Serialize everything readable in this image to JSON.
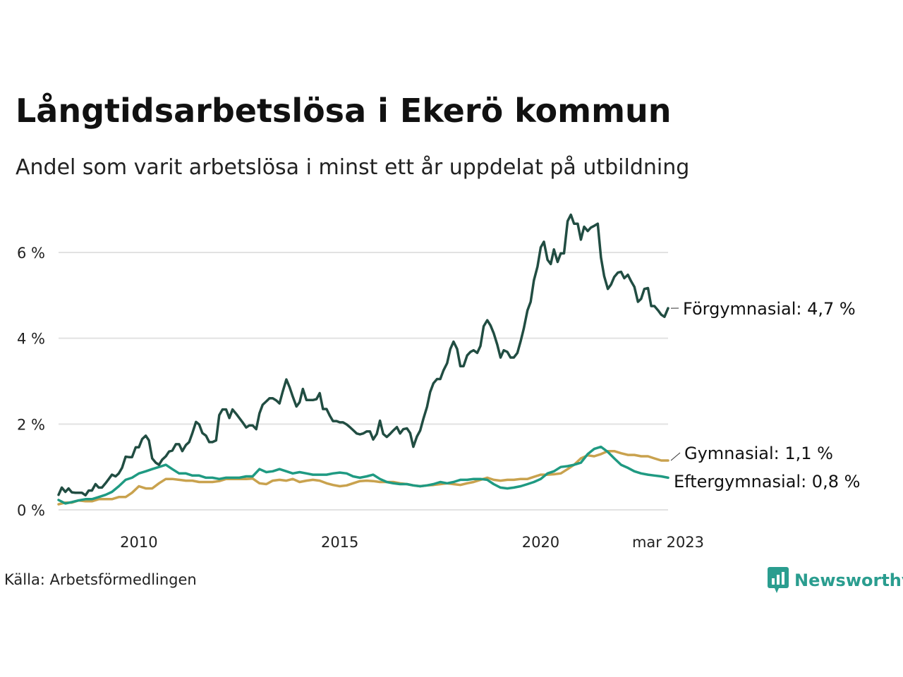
{
  "title": "Långtidsarbetslösa i Ekerö kommun",
  "subtitle": "Andel som varit arbetslösa i minst ett år uppdelat på utbildning",
  "source": "Källa: Arbetsförmedlingen",
  "brand": {
    "name": "Newsworthy",
    "color": "#2a9d8f"
  },
  "chart_data": {
    "type": "line",
    "title": "Långtidsarbetslösa i Ekerö kommun",
    "subtitle": "Andel som varit arbetslösa i minst ett år uppdelat på utbildning",
    "xlim": [
      2008.0,
      2023.17
    ],
    "ylim": [
      0,
      7
    ],
    "y_ticks": [
      {
        "value": 0,
        "label": "0 %"
      },
      {
        "value": 2,
        "label": "2 %"
      },
      {
        "value": 4,
        "label": "4 %"
      },
      {
        "value": 6,
        "label": "6 %"
      }
    ],
    "x_ticks": [
      {
        "value": 2010,
        "label": "2010"
      },
      {
        "value": 2015,
        "label": "2015"
      },
      {
        "value": 2020,
        "label": "2020"
      },
      {
        "value": 2023.17,
        "label": "mar 2023"
      }
    ],
    "grid": "horizontal",
    "series": [
      {
        "name": "Förgymnasial",
        "end_label": "Förgymnasial: 4,7 %",
        "color": "#214d42",
        "x": [
          2008.0,
          2008.08,
          2008.17,
          2008.25,
          2008.33,
          2008.42,
          2008.5,
          2008.58,
          2008.67,
          2008.75,
          2008.83,
          2008.92,
          2009.0,
          2009.08,
          2009.17,
          2009.25,
          2009.33,
          2009.42,
          2009.5,
          2009.58,
          2009.67,
          2009.75,
          2009.83,
          2009.92,
          2010.0,
          2010.08,
          2010.17,
          2010.25,
          2010.33,
          2010.42,
          2010.5,
          2010.58,
          2010.67,
          2010.75,
          2010.83,
          2010.92,
          2011.0,
          2011.08,
          2011.17,
          2011.25,
          2011.33,
          2011.42,
          2011.5,
          2011.58,
          2011.67,
          2011.75,
          2011.83,
          2011.92,
          2012.0,
          2012.08,
          2012.17,
          2012.25,
          2012.33,
          2012.42,
          2012.5,
          2012.58,
          2012.67,
          2012.75,
          2012.83,
          2012.92,
          2013.0,
          2013.08,
          2013.17,
          2013.25,
          2013.33,
          2013.42,
          2013.5,
          2013.58,
          2013.67,
          2013.75,
          2013.83,
          2013.92,
          2014.0,
          2014.08,
          2014.17,
          2014.25,
          2014.33,
          2014.42,
          2014.5,
          2014.58,
          2014.67,
          2014.75,
          2014.83,
          2014.92,
          2015.0,
          2015.08,
          2015.17,
          2015.25,
          2015.33,
          2015.42,
          2015.5,
          2015.58,
          2015.67,
          2015.75,
          2015.83,
          2015.92,
          2016.0,
          2016.08,
          2016.17,
          2016.25,
          2016.33,
          2016.42,
          2016.5,
          2016.58,
          2016.67,
          2016.75,
          2016.83,
          2016.92,
          2017.0,
          2017.08,
          2017.17,
          2017.25,
          2017.33,
          2017.42,
          2017.5,
          2017.58,
          2017.67,
          2017.75,
          2017.83,
          2017.92,
          2018.0,
          2018.08,
          2018.17,
          2018.25,
          2018.33,
          2018.42,
          2018.5,
          2018.58,
          2018.67,
          2018.75,
          2018.83,
          2018.92,
          2019.0,
          2019.08,
          2019.17,
          2019.25,
          2019.33,
          2019.42,
          2019.5,
          2019.58,
          2019.67,
          2019.75,
          2019.83,
          2019.92,
          2020.0,
          2020.08,
          2020.17,
          2020.25,
          2020.33,
          2020.42,
          2020.5,
          2020.58,
          2020.67,
          2020.75,
          2020.83,
          2020.92,
          2021.0,
          2021.08,
          2021.17,
          2021.25,
          2021.33,
          2021.42,
          2021.5,
          2021.58,
          2021.67,
          2021.75,
          2021.83,
          2021.92,
          2022.0,
          2022.08,
          2022.17,
          2022.25,
          2022.33,
          2022.42,
          2022.5,
          2022.58,
          2022.67,
          2022.75,
          2022.83,
          2022.92,
          2023.0,
          2023.08,
          2023.17
        ],
        "values": [
          0.35,
          0.52,
          0.42,
          0.5,
          0.41,
          0.4,
          0.4,
          0.4,
          0.34,
          0.45,
          0.45,
          0.6,
          0.52,
          0.52,
          0.62,
          0.72,
          0.82,
          0.78,
          0.85,
          0.98,
          1.24,
          1.23,
          1.23,
          1.46,
          1.46,
          1.65,
          1.73,
          1.62,
          1.2,
          1.1,
          1.05,
          1.17,
          1.25,
          1.36,
          1.38,
          1.53,
          1.53,
          1.37,
          1.51,
          1.58,
          1.79,
          2.05,
          1.99,
          1.79,
          1.73,
          1.58,
          1.58,
          1.62,
          2.21,
          2.34,
          2.34,
          2.14,
          2.34,
          2.24,
          2.14,
          2.04,
          1.92,
          1.97,
          1.97,
          1.88,
          2.25,
          2.45,
          2.53,
          2.6,
          2.6,
          2.55,
          2.48,
          2.76,
          3.04,
          2.86,
          2.64,
          2.41,
          2.51,
          2.82,
          2.56,
          2.56,
          2.56,
          2.58,
          2.72,
          2.35,
          2.35,
          2.2,
          2.07,
          2.07,
          2.04,
          2.04,
          1.99,
          1.93,
          1.86,
          1.78,
          1.76,
          1.78,
          1.83,
          1.83,
          1.64,
          1.77,
          2.08,
          1.77,
          1.7,
          1.77,
          1.85,
          1.93,
          1.78,
          1.88,
          1.9,
          1.79,
          1.47,
          1.71,
          1.85,
          2.12,
          2.4,
          2.75,
          2.95,
          3.05,
          3.05,
          3.25,
          3.42,
          3.75,
          3.92,
          3.75,
          3.35,
          3.35,
          3.6,
          3.68,
          3.72,
          3.66,
          3.82,
          4.28,
          4.42,
          4.3,
          4.12,
          3.85,
          3.55,
          3.72,
          3.68,
          3.55,
          3.55,
          3.66,
          3.93,
          4.23,
          4.65,
          4.85,
          5.35,
          5.67,
          6.12,
          6.25,
          5.83,
          5.73,
          6.07,
          5.78,
          5.98,
          5.98,
          6.73,
          6.88,
          6.67,
          6.67,
          6.3,
          6.6,
          6.5,
          6.58,
          6.62,
          6.67,
          5.88,
          5.45,
          5.15,
          5.25,
          5.43,
          5.53,
          5.55,
          5.4,
          5.48,
          5.33,
          5.2,
          4.85,
          4.92,
          5.15,
          5.17,
          4.75,
          4.75,
          4.65,
          4.55,
          4.5,
          4.7
        ]
      },
      {
        "name": "Gymnasial",
        "end_label": "Gymnasial: 1,1 %",
        "color": "#c9a24e",
        "x": [
          2008.0,
          2008.17,
          2008.33,
          2008.5,
          2008.67,
          2008.83,
          2009.0,
          2009.17,
          2009.33,
          2009.5,
          2009.67,
          2009.83,
          2010.0,
          2010.17,
          2010.33,
          2010.5,
          2010.67,
          2010.83,
          2011.0,
          2011.17,
          2011.33,
          2011.5,
          2011.67,
          2011.83,
          2012.0,
          2012.17,
          2012.33,
          2012.5,
          2012.67,
          2012.83,
          2013.0,
          2013.17,
          2013.33,
          2013.5,
          2013.67,
          2013.83,
          2014.0,
          2014.17,
          2014.33,
          2014.5,
          2014.67,
          2014.83,
          2015.0,
          2015.17,
          2015.33,
          2015.5,
          2015.67,
          2015.83,
          2016.0,
          2016.17,
          2016.33,
          2016.5,
          2016.67,
          2016.83,
          2017.0,
          2017.17,
          2017.33,
          2017.5,
          2017.67,
          2017.83,
          2018.0,
          2018.17,
          2018.33,
          2018.5,
          2018.67,
          2018.83,
          2019.0,
          2019.17,
          2019.33,
          2019.5,
          2019.67,
          2019.83,
          2020.0,
          2020.17,
          2020.33,
          2020.5,
          2020.67,
          2020.83,
          2021.0,
          2021.17,
          2021.33,
          2021.5,
          2021.67,
          2021.83,
          2022.0,
          2022.17,
          2022.33,
          2022.5,
          2022.67,
          2022.83,
          2023.0,
          2023.17
        ],
        "values": [
          0.13,
          0.17,
          0.17,
          0.22,
          0.2,
          0.2,
          0.25,
          0.25,
          0.25,
          0.3,
          0.3,
          0.4,
          0.55,
          0.5,
          0.5,
          0.62,
          0.72,
          0.72,
          0.7,
          0.68,
          0.68,
          0.65,
          0.65,
          0.65,
          0.67,
          0.72,
          0.72,
          0.72,
          0.72,
          0.73,
          0.62,
          0.6,
          0.68,
          0.7,
          0.68,
          0.72,
          0.65,
          0.68,
          0.7,
          0.68,
          0.62,
          0.58,
          0.55,
          0.57,
          0.62,
          0.67,
          0.68,
          0.67,
          0.65,
          0.65,
          0.65,
          0.62,
          0.6,
          0.57,
          0.55,
          0.57,
          0.58,
          0.6,
          0.62,
          0.6,
          0.58,
          0.62,
          0.65,
          0.7,
          0.75,
          0.7,
          0.68,
          0.7,
          0.7,
          0.72,
          0.72,
          0.77,
          0.82,
          0.82,
          0.83,
          0.85,
          0.95,
          1.05,
          1.2,
          1.27,
          1.25,
          1.3,
          1.37,
          1.37,
          1.32,
          1.28,
          1.28,
          1.25,
          1.25,
          1.2,
          1.15,
          1.15
        ]
      },
      {
        "name": "Eftergymnasial",
        "end_label": "Eftergymnasial: 0,8 %",
        "color": "#1f9a82",
        "x": [
          2008.0,
          2008.17,
          2008.33,
          2008.5,
          2008.67,
          2008.83,
          2009.0,
          2009.17,
          2009.33,
          2009.5,
          2009.67,
          2009.83,
          2010.0,
          2010.17,
          2010.33,
          2010.5,
          2010.67,
          2010.83,
          2011.0,
          2011.17,
          2011.33,
          2011.5,
          2011.67,
          2011.83,
          2012.0,
          2012.17,
          2012.33,
          2012.5,
          2012.67,
          2012.83,
          2013.0,
          2013.17,
          2013.33,
          2013.5,
          2013.67,
          2013.83,
          2014.0,
          2014.17,
          2014.33,
          2014.5,
          2014.67,
          2014.83,
          2015.0,
          2015.17,
          2015.33,
          2015.5,
          2015.67,
          2015.83,
          2016.0,
          2016.17,
          2016.33,
          2016.5,
          2016.67,
          2016.83,
          2017.0,
          2017.17,
          2017.33,
          2017.5,
          2017.67,
          2017.83,
          2018.0,
          2018.17,
          2018.33,
          2018.5,
          2018.67,
          2018.83,
          2019.0,
          2019.17,
          2019.33,
          2019.5,
          2019.67,
          2019.83,
          2020.0,
          2020.17,
          2020.33,
          2020.5,
          2020.67,
          2020.83,
          2021.0,
          2021.17,
          2021.33,
          2021.5,
          2021.67,
          2021.83,
          2022.0,
          2022.17,
          2022.33,
          2022.5,
          2022.67,
          2022.83,
          2023.0,
          2023.17
        ],
        "values": [
          0.23,
          0.15,
          0.18,
          0.22,
          0.25,
          0.25,
          0.3,
          0.35,
          0.42,
          0.55,
          0.7,
          0.75,
          0.85,
          0.9,
          0.95,
          1.0,
          1.05,
          0.95,
          0.85,
          0.85,
          0.8,
          0.8,
          0.75,
          0.75,
          0.72,
          0.75,
          0.75,
          0.75,
          0.78,
          0.78,
          0.95,
          0.88,
          0.9,
          0.95,
          0.9,
          0.85,
          0.88,
          0.85,
          0.82,
          0.82,
          0.82,
          0.85,
          0.87,
          0.85,
          0.78,
          0.75,
          0.78,
          0.82,
          0.72,
          0.65,
          0.62,
          0.6,
          0.6,
          0.57,
          0.55,
          0.57,
          0.6,
          0.65,
          0.62,
          0.65,
          0.7,
          0.7,
          0.72,
          0.72,
          0.7,
          0.6,
          0.52,
          0.5,
          0.52,
          0.55,
          0.6,
          0.65,
          0.72,
          0.85,
          0.9,
          1.0,
          1.02,
          1.05,
          1.1,
          1.3,
          1.42,
          1.47,
          1.35,
          1.2,
          1.05,
          0.98,
          0.9,
          0.85,
          0.82,
          0.8,
          0.78,
          0.75
        ]
      }
    ]
  }
}
